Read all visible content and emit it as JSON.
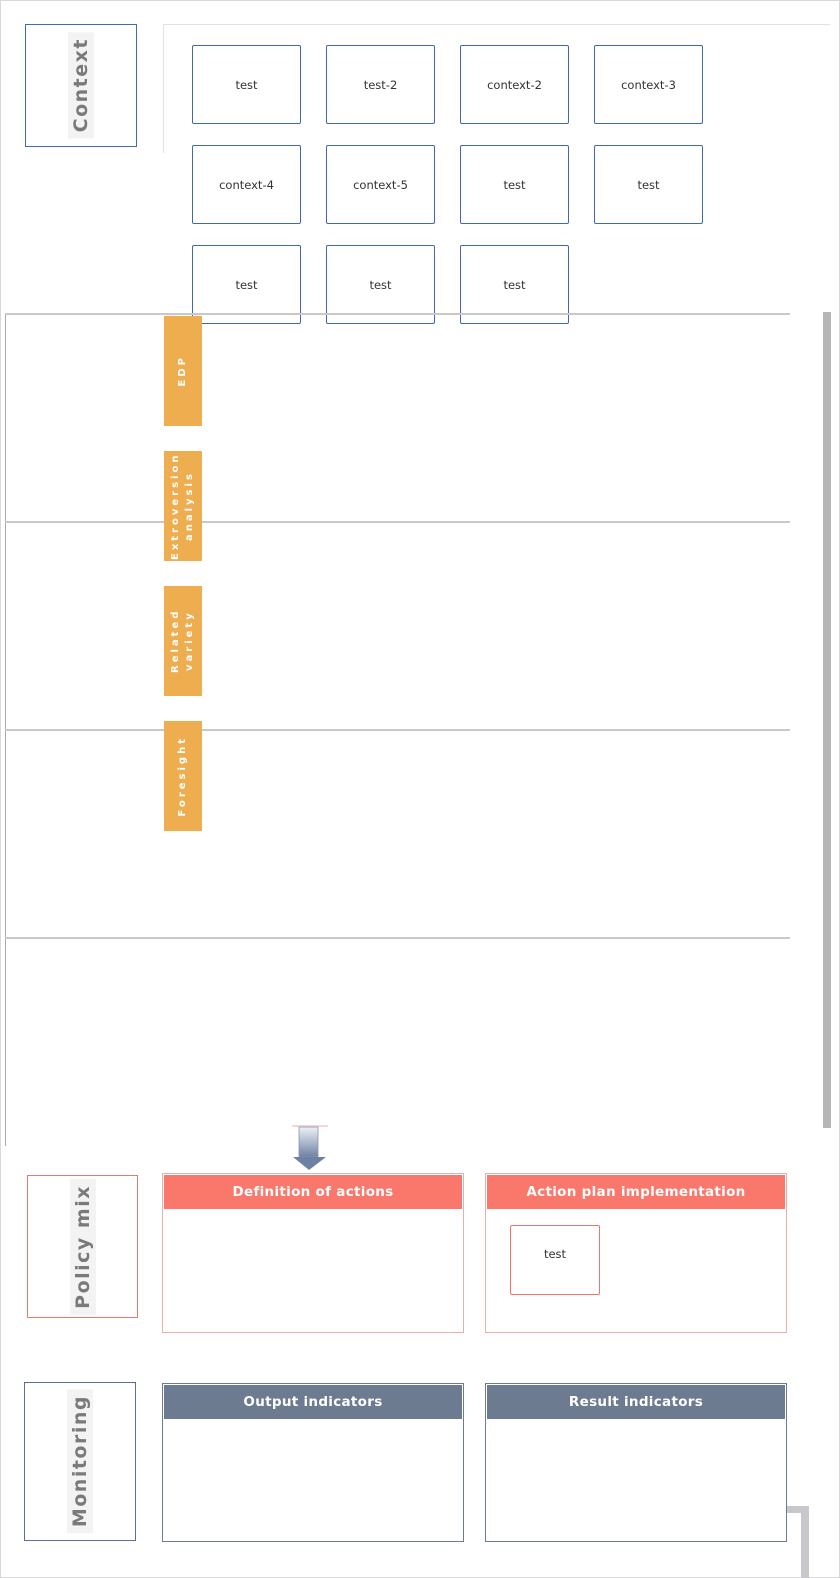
{
  "sections": {
    "context": "Context",
    "policy_mix": "Policy mix",
    "monitoring": "Monitoring"
  },
  "context_cards": [
    "test",
    "test-2",
    "context-2",
    "context-3",
    "context-4",
    "context-5",
    "test",
    "test",
    "test",
    "test",
    "test"
  ],
  "methods": {
    "edp": "EDP",
    "extroversion": "Extroversion analysis",
    "related_variety": "Related variety",
    "foresight": "Foresight"
  },
  "panels": {
    "definition_of_actions": "Definition of actions",
    "action_plan_implementation": "Action plan implementation",
    "output_indicators": "Output indicators",
    "result_indicators": "Result indicators"
  },
  "action_plan_cards": [
    "test"
  ],
  "colors": {
    "context_border": "#3f6bb5",
    "method_tab": "#eeae50",
    "policy_header": "#fa776b",
    "monitoring_header": "#6d7b91"
  }
}
